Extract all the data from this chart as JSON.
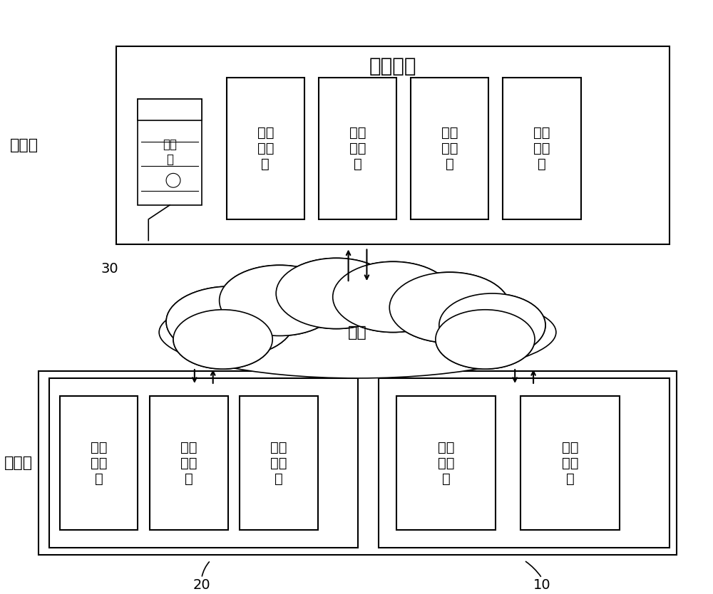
{
  "bg_color": "#ffffff",
  "title": "直播平台",
  "server_label": "服务端",
  "client_label": "客户端",
  "network_label": "网络",
  "server_box_label": "服务\n器",
  "virtual_rooms": [
    "虚拟\n直播\n间",
    "虚拟\n直播\n间",
    "虚拟\n直播\n间",
    "虚拟\n直播\n间"
  ],
  "audience_clients": [
    "观众\n客户\n端",
    "观众\n客户\n端",
    "观众\n客户\n端"
  ],
  "host_clients": [
    "主播\n客户\n端",
    "主播\n客户\n端"
  ],
  "label_30": "30",
  "label_20": "20",
  "label_10": "10",
  "font_size_title": 20,
  "font_size_label": 16,
  "font_size_box": 14,
  "font_size_number": 14
}
